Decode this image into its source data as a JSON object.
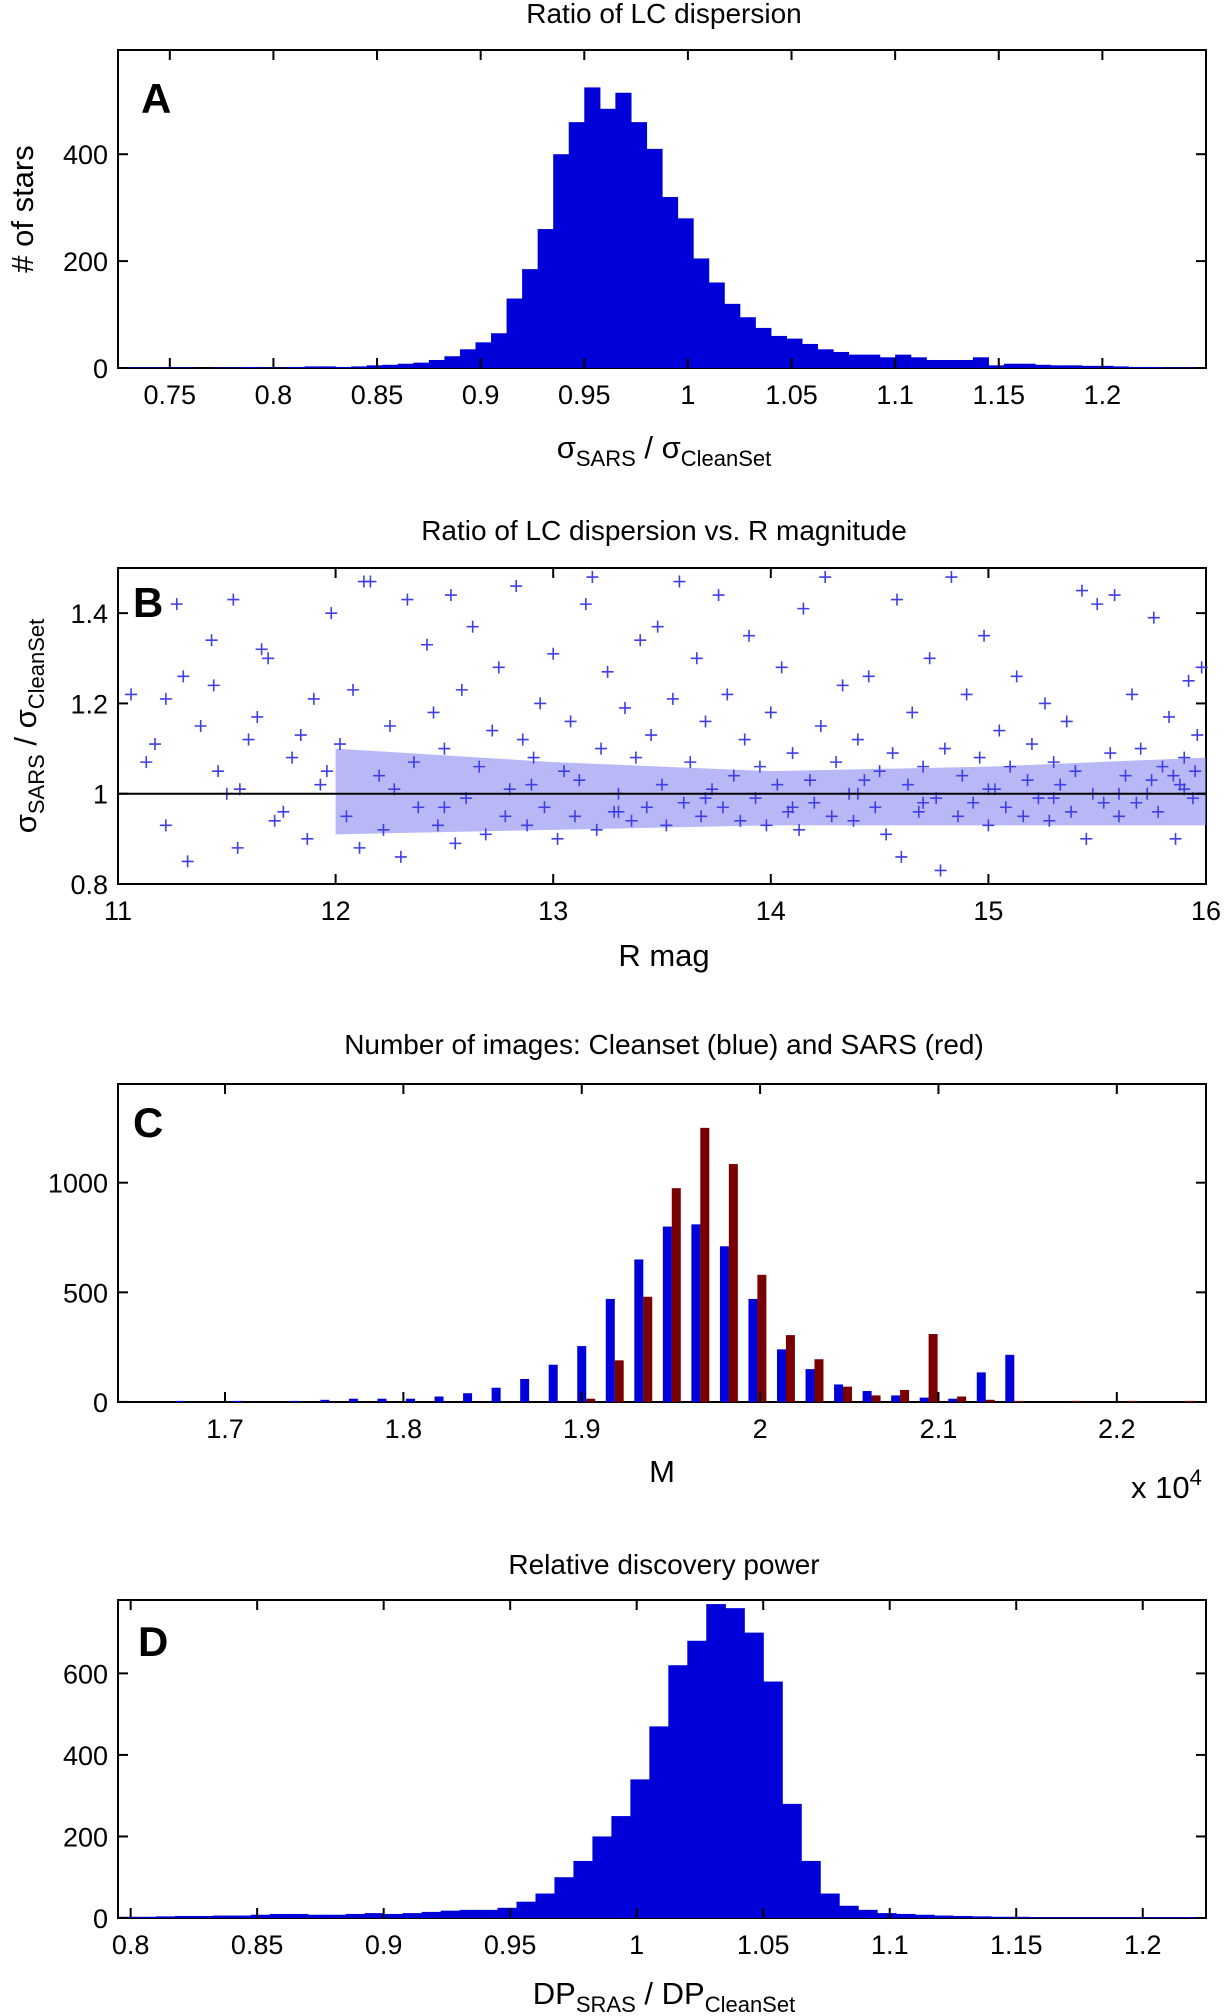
{
  "chart_data": [
    {
      "panel": "A",
      "type": "bar",
      "title": "Ratio of LC dispersion",
      "xlabel": {
        "main": "σ",
        "sub": "SARS",
        "sep": " / ",
        "main2": "σ",
        "sub2": "CleanSet"
      },
      "ylabel": "# of stars",
      "xlim": [
        0.725,
        1.25
      ],
      "ylim": [
        0,
        595
      ],
      "xticks": [
        0.75,
        0.8,
        0.85,
        0.9,
        0.95,
        1,
        1.05,
        1.1,
        1.15,
        1.2
      ],
      "xtick_labels": [
        "0.75",
        "0.8",
        "0.85",
        "0.9",
        "0.95",
        "1",
        "1.05",
        "1.1",
        "1.15",
        "1.2"
      ],
      "yticks": [
        0,
        200,
        400
      ],
      "ytick_labels": [
        "0",
        "200",
        "400"
      ],
      "bin_start": 0.725,
      "bin_width": 0.0075,
      "color": "#0000d8",
      "values": [
        1,
        1,
        1,
        1,
        1,
        0,
        1,
        1,
        2,
        1,
        1,
        2,
        3,
        3,
        2,
        3,
        5,
        6,
        8,
        10,
        15,
        22,
        35,
        48,
        65,
        130,
        185,
        260,
        400,
        460,
        525,
        485,
        515,
        460,
        410,
        320,
        280,
        205,
        160,
        120,
        95,
        75,
        60,
        55,
        45,
        35,
        30,
        25,
        25,
        20,
        25,
        20,
        15,
        15,
        15,
        20,
        5,
        8,
        8,
        6,
        5,
        5,
        4,
        4,
        3,
        2,
        2,
        1,
        1,
        1
      ]
    },
    {
      "panel": "B",
      "type": "scatter",
      "title": "Ratio of LC dispersion vs. R magnitude",
      "xlabel": "R mag",
      "ylabel": {
        "main": "σ",
        "sub": "SARS",
        "sep": " / ",
        "main2": "σ",
        "sub2": "CleanSet"
      },
      "xlim": [
        11,
        16
      ],
      "ylim": [
        0.8,
        1.5
      ],
      "xticks": [
        11,
        12,
        13,
        14,
        15,
        16
      ],
      "xtick_labels": [
        "11",
        "12",
        "13",
        "14",
        "15",
        "16"
      ],
      "yticks": [
        0.8,
        1,
        1.2,
        1.4
      ],
      "ytick_labels": [
        "0.8",
        "1",
        "1.2",
        "1.4"
      ],
      "reference_line_y": 1,
      "marker": "+",
      "color": "#3f3fe6",
      "points": [
        [
          11.06,
          1.22
        ],
        [
          11.13,
          1.07
        ],
        [
          11.17,
          1.11
        ],
        [
          11.22,
          0.93
        ],
        [
          11.22,
          1.21
        ],
        [
          11.27,
          1.42
        ],
        [
          11.3,
          1.26
        ],
        [
          11.32,
          0.85
        ],
        [
          11.38,
          1.15
        ],
        [
          11.43,
          1.34
        ],
        [
          11.44,
          1.24
        ],
        [
          11.46,
          1.05
        ],
        [
          11.5,
          1.0
        ],
        [
          11.53,
          1.43
        ],
        [
          11.55,
          0.88
        ],
        [
          11.56,
          1.01
        ],
        [
          11.6,
          1.12
        ],
        [
          11.64,
          1.17
        ],
        [
          11.66,
          1.32
        ],
        [
          11.69,
          1.3
        ],
        [
          11.72,
          0.94
        ],
        [
          11.76,
          0.96
        ],
        [
          11.8,
          1.08
        ],
        [
          11.84,
          1.13
        ],
        [
          11.87,
          0.9
        ],
        [
          11.9,
          1.21
        ],
        [
          11.93,
          1.02
        ],
        [
          11.96,
          1.05
        ],
        [
          11.98,
          1.4
        ],
        [
          12.02,
          1.11
        ],
        [
          12.05,
          0.95
        ],
        [
          12.08,
          1.23
        ],
        [
          12.11,
          0.88
        ],
        [
          12.13,
          1.47
        ],
        [
          12.16,
          1.47
        ],
        [
          12.2,
          1.04
        ],
        [
          12.22,
          0.92
        ],
        [
          12.25,
          1.15
        ],
        [
          12.27,
          1.01
        ],
        [
          12.3,
          0.86
        ],
        [
          12.33,
          1.43
        ],
        [
          12.36,
          1.07
        ],
        [
          12.38,
          0.97
        ],
        [
          12.42,
          1.33
        ],
        [
          12.45,
          1.18
        ],
        [
          12.47,
          0.93
        ],
        [
          12.5,
          1.1
        ],
        [
          12.53,
          1.44
        ],
        [
          12.55,
          0.89
        ],
        [
          12.58,
          1.23
        ],
        [
          12.6,
          0.99
        ],
        [
          12.63,
          1.37
        ],
        [
          12.66,
          1.06
        ],
        [
          12.69,
          0.91
        ],
        [
          12.72,
          1.14
        ],
        [
          12.75,
          1.28
        ],
        [
          12.78,
          0.95
        ],
        [
          12.8,
          1.01
        ],
        [
          12.83,
          1.46
        ],
        [
          12.86,
          1.12
        ],
        [
          12.88,
          0.93
        ],
        [
          12.91,
          1.08
        ],
        [
          12.94,
          1.2
        ],
        [
          12.96,
          0.97
        ],
        [
          13.0,
          1.31
        ],
        [
          13.02,
          0.9
        ],
        [
          13.05,
          1.05
        ],
        [
          13.08,
          1.16
        ],
        [
          13.1,
          0.95
        ],
        [
          13.12,
          1.03
        ],
        [
          13.15,
          1.42
        ],
        [
          13.18,
          1.48
        ],
        [
          13.2,
          0.92
        ],
        [
          13.22,
          1.1
        ],
        [
          13.25,
          1.27
        ],
        [
          13.28,
          0.96
        ],
        [
          13.3,
          1.0
        ],
        [
          13.33,
          1.19
        ],
        [
          13.36,
          0.94
        ],
        [
          13.38,
          1.08
        ],
        [
          13.4,
          1.34
        ],
        [
          13.43,
          0.97
        ],
        [
          13.45,
          1.13
        ],
        [
          13.48,
          1.37
        ],
        [
          13.5,
          1.02
        ],
        [
          13.52,
          0.93
        ],
        [
          13.55,
          1.21
        ],
        [
          13.58,
          1.47
        ],
        [
          13.6,
          0.98
        ],
        [
          13.63,
          1.07
        ],
        [
          13.66,
          1.3
        ],
        [
          13.68,
          0.95
        ],
        [
          13.7,
          1.16
        ],
        [
          13.73,
          1.01
        ],
        [
          13.76,
          1.44
        ],
        [
          13.78,
          0.97
        ],
        [
          13.8,
          1.22
        ],
        [
          13.83,
          1.04
        ],
        [
          13.86,
          0.94
        ],
        [
          13.88,
          1.12
        ],
        [
          13.9,
          1.35
        ],
        [
          13.93,
          0.99
        ],
        [
          13.95,
          1.06
        ],
        [
          13.98,
          0.93
        ],
        [
          14.0,
          1.18
        ],
        [
          14.03,
          1.02
        ],
        [
          14.05,
          1.28
        ],
        [
          14.08,
          0.96
        ],
        [
          14.1,
          1.09
        ],
        [
          14.13,
          0.92
        ],
        [
          14.15,
          1.41
        ],
        [
          14.18,
          1.03
        ],
        [
          14.2,
          0.98
        ],
        [
          14.23,
          1.15
        ],
        [
          14.25,
          1.48
        ],
        [
          14.28,
          0.95
        ],
        [
          14.3,
          1.07
        ],
        [
          14.33,
          1.24
        ],
        [
          14.36,
          1.0
        ],
        [
          14.38,
          0.94
        ],
        [
          14.4,
          1.12
        ],
        [
          14.43,
          1.03
        ],
        [
          14.45,
          1.26
        ],
        [
          14.48,
          0.97
        ],
        [
          14.5,
          1.05
        ],
        [
          14.53,
          0.91
        ],
        [
          14.56,
          1.09
        ],
        [
          14.58,
          1.43
        ],
        [
          14.6,
          0.86
        ],
        [
          14.63,
          1.02
        ],
        [
          14.65,
          1.18
        ],
        [
          14.68,
          0.96
        ],
        [
          14.7,
          1.06
        ],
        [
          14.73,
          1.3
        ],
        [
          14.76,
          0.99
        ],
        [
          14.78,
          0.83
        ],
        [
          14.8,
          1.1
        ],
        [
          14.83,
          1.48
        ],
        [
          14.86,
          0.95
        ],
        [
          14.88,
          1.04
        ],
        [
          14.9,
          1.22
        ],
        [
          14.93,
          0.98
        ],
        [
          14.96,
          1.08
        ],
        [
          14.98,
          1.35
        ],
        [
          15.0,
          0.93
        ],
        [
          15.03,
          1.01
        ],
        [
          15.05,
          1.14
        ],
        [
          15.08,
          0.97
        ],
        [
          15.1,
          1.06
        ],
        [
          15.13,
          1.26
        ],
        [
          15.16,
          0.95
        ],
        [
          15.18,
          1.03
        ],
        [
          15.2,
          1.11
        ],
        [
          15.23,
          0.99
        ],
        [
          15.26,
          1.2
        ],
        [
          15.28,
          0.94
        ],
        [
          15.3,
          1.07
        ],
        [
          15.33,
          1.02
        ],
        [
          15.36,
          1.16
        ],
        [
          15.38,
          0.96
        ],
        [
          15.4,
          1.05
        ],
        [
          15.43,
          1.45
        ],
        [
          15.45,
          0.9
        ],
        [
          15.48,
          1.0
        ],
        [
          15.5,
          1.42
        ],
        [
          15.53,
          0.98
        ],
        [
          15.56,
          1.09
        ],
        [
          15.58,
          1.44
        ],
        [
          15.6,
          0.95
        ],
        [
          15.63,
          1.04
        ],
        [
          15.66,
          1.22
        ],
        [
          15.68,
          0.98
        ],
        [
          15.7,
          1.1
        ],
        [
          15.73,
          1.0
        ],
        [
          15.76,
          1.39
        ],
        [
          15.78,
          0.96
        ],
        [
          15.8,
          1.06
        ],
        [
          15.83,
          1.17
        ],
        [
          15.86,
          0.9
        ],
        [
          15.88,
          1.02
        ],
        [
          15.9,
          1.08
        ],
        [
          15.92,
          1.25
        ],
        [
          15.94,
          0.99
        ],
        [
          15.96,
          1.13
        ],
        [
          15.98,
          1.28
        ],
        [
          12.5,
          0.97
        ],
        [
          12.9,
          1.02
        ],
        [
          13.3,
          0.96
        ],
        [
          13.7,
          0.99
        ],
        [
          14.1,
          0.97
        ],
        [
          14.4,
          1.0
        ],
        [
          14.7,
          0.98
        ],
        [
          15.0,
          1.01
        ],
        [
          15.3,
          0.99
        ],
        [
          15.6,
          1.0
        ],
        [
          15.9,
          1.01
        ],
        [
          15.95,
          1.05
        ],
        [
          15.85,
          1.04
        ],
        [
          15.75,
          1.03
        ]
      ],
      "dense_band": [
        [
          12.0,
          0.91,
          1.1
        ],
        [
          13.0,
          0.92,
          1.07
        ],
        [
          14.0,
          0.93,
          1.05
        ],
        [
          15.0,
          0.93,
          1.06
        ],
        [
          16.0,
          0.93,
          1.08
        ]
      ]
    },
    {
      "panel": "C",
      "type": "bar",
      "title": "Number of images: Cleanset (blue) and SARS (red)",
      "xlabel": "M",
      "x_multiplier_label": {
        "base": "x 10",
        "exp": "4"
      },
      "xlim": [
        1.64,
        2.25
      ],
      "ylim": [
        0,
        1450
      ],
      "xticks": [
        1.7,
        1.8,
        1.9,
        2,
        2.1,
        2.2
      ],
      "xtick_labels": [
        "1.7",
        "1.8",
        "1.9",
        "2",
        "2.1",
        "2.2"
      ],
      "yticks": [
        0,
        500,
        1000
      ],
      "ytick_labels": [
        "0",
        "500",
        "1000"
      ],
      "series": [
        {
          "name": "Cleanset",
          "color": "#0000d8",
          "x": [
            1.643,
            1.675,
            1.707,
            1.739,
            1.756,
            1.772,
            1.788,
            1.804,
            1.82,
            1.836,
            1.852,
            1.868,
            1.884,
            1.9,
            1.916,
            1.932,
            1.948,
            1.964,
            1.98,
            1.996,
            2.012,
            2.028,
            2.044,
            2.06,
            2.076,
            2.092,
            2.108,
            2.124,
            2.14
          ],
          "values": [
            5,
            5,
            5,
            5,
            10,
            15,
            15,
            15,
            25,
            40,
            65,
            105,
            170,
            255,
            470,
            650,
            800,
            810,
            710,
            470,
            240,
            150,
            80,
            50,
            30,
            20,
            15,
            135,
            215
          ]
        },
        {
          "name": "SARS",
          "color": "#7a0000",
          "x": [
            1.905,
            1.921,
            1.937,
            1.953,
            1.969,
            1.985,
            2.001,
            2.017,
            2.033,
            2.049,
            2.065,
            2.081,
            2.097,
            2.113,
            2.129,
            2.145,
            2.177,
            2.209,
            2.241
          ],
          "values": [
            15,
            190,
            480,
            975,
            1250,
            1085,
            580,
            305,
            195,
            70,
            30,
            55,
            310,
            25,
            10,
            5,
            5,
            5,
            5
          ]
        }
      ]
    },
    {
      "panel": "D",
      "type": "bar",
      "title": "Relative discovery power",
      "xlabel": {
        "main": "DP",
        "sub": "SRAS",
        "sep": " / ",
        "main2": "DP",
        "sub2": "CleanSet"
      },
      "xlim": [
        0.795,
        1.225
      ],
      "ylim": [
        0,
        780
      ],
      "xticks": [
        0.8,
        0.85,
        0.9,
        0.95,
        1,
        1.05,
        1.1,
        1.15,
        1.2
      ],
      "xtick_labels": [
        "0.8",
        "0.85",
        "0.9",
        "0.95",
        "1",
        "1.05",
        "1.1",
        "1.15",
        "1.2"
      ],
      "yticks": [
        0,
        200,
        400,
        600
      ],
      "ytick_labels": [
        "0",
        "200",
        "400",
        "600"
      ],
      "bin_start": 0.795,
      "bin_width": 0.0075,
      "color": "#0000d8",
      "values": [
        3,
        3,
        4,
        5,
        5,
        6,
        6,
        8,
        10,
        10,
        8,
        8,
        10,
        12,
        10,
        12,
        15,
        18,
        20,
        20,
        25,
        40,
        60,
        100,
        140,
        200,
        250,
        340,
        470,
        620,
        680,
        770,
        760,
        700,
        580,
        280,
        140,
        60,
        30,
        20,
        12,
        10,
        8,
        6,
        5,
        4,
        3,
        3,
        2,
        2,
        2,
        2,
        2,
        2,
        2,
        2,
        2,
        1
      ]
    }
  ]
}
